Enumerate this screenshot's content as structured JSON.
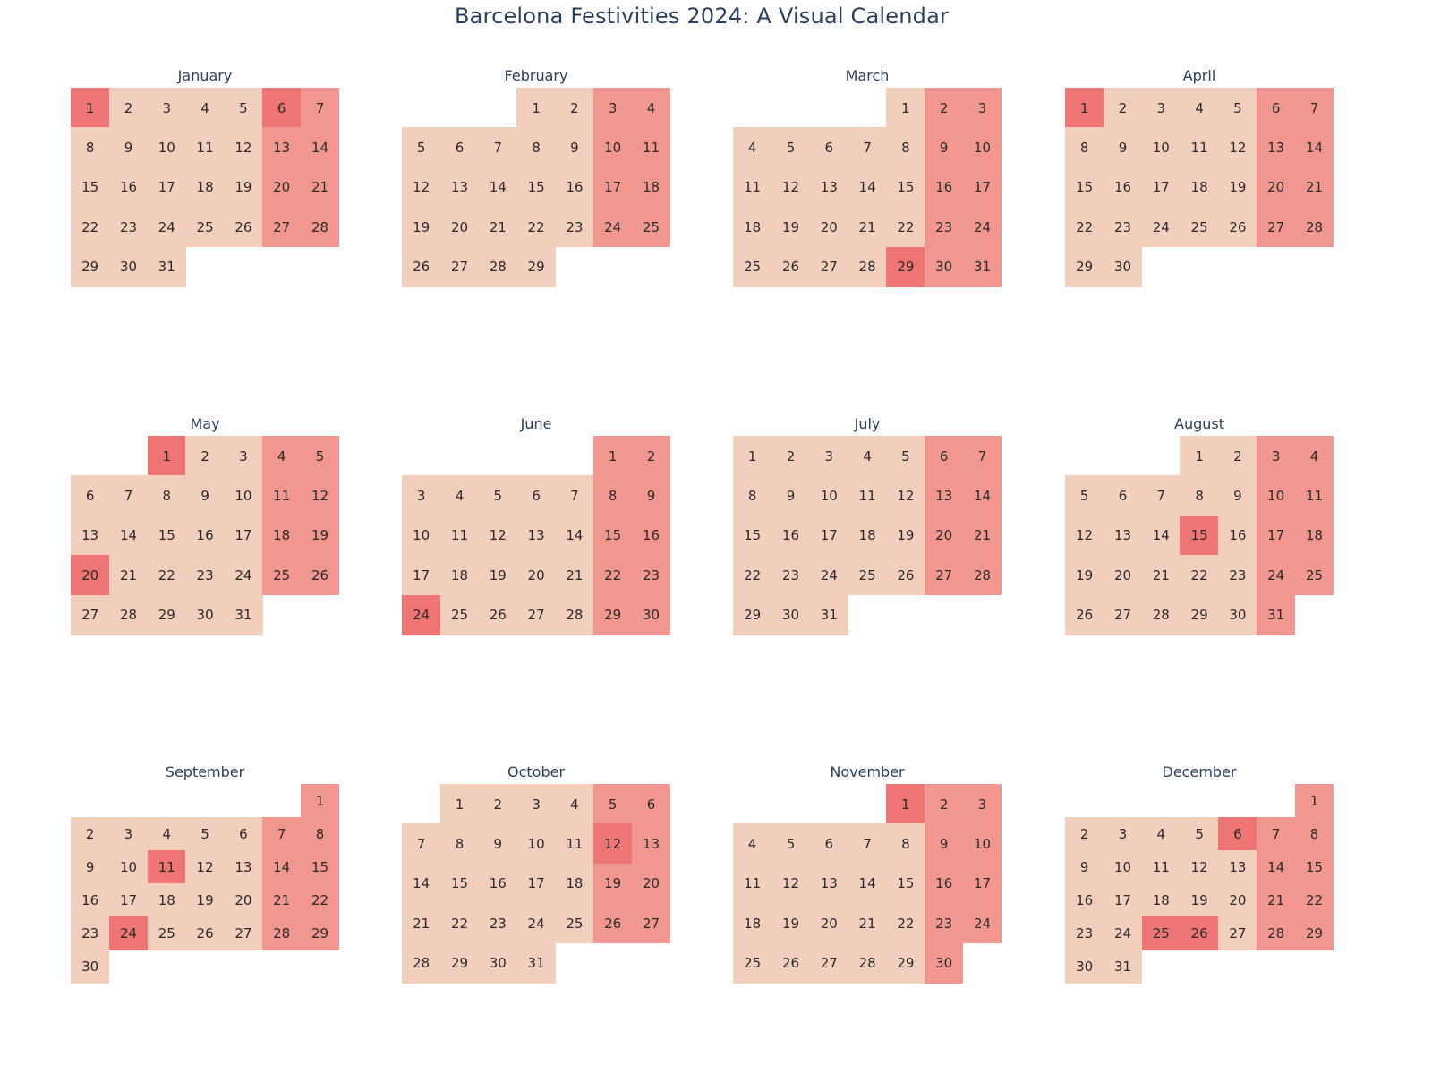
{
  "title": "Barcelona Festivities 2024: A Visual Calendar",
  "colors": {
    "weekday": "#f2cfbd",
    "weekend": "#f1978f",
    "holiday": "#ef7575",
    "empty": "#ffffff",
    "text": "#2a2a2a",
    "title": "#2a3f5f"
  },
  "chart_data": {
    "type": "heatmap",
    "year": 2024,
    "week_start": "Monday",
    "legend": "none",
    "categories": [
      "weekday",
      "weekend",
      "holiday"
    ],
    "months": [
      {
        "name": "January",
        "days": 31,
        "first_weekday": 0,
        "holidays": [
          1,
          6
        ]
      },
      {
        "name": "February",
        "days": 29,
        "first_weekday": 3,
        "holidays": []
      },
      {
        "name": "March",
        "days": 31,
        "first_weekday": 4,
        "holidays": [
          29
        ]
      },
      {
        "name": "April",
        "days": 30,
        "first_weekday": 0,
        "holidays": [
          1
        ]
      },
      {
        "name": "May",
        "days": 31,
        "first_weekday": 2,
        "holidays": [
          1,
          20
        ]
      },
      {
        "name": "June",
        "days": 30,
        "first_weekday": 5,
        "holidays": [
          24
        ]
      },
      {
        "name": "July",
        "days": 31,
        "first_weekday": 0,
        "holidays": []
      },
      {
        "name": "August",
        "days": 31,
        "first_weekday": 3,
        "holidays": [
          15
        ]
      },
      {
        "name": "September",
        "days": 30,
        "first_weekday": 6,
        "holidays": [
          11,
          24
        ]
      },
      {
        "name": "October",
        "days": 31,
        "first_weekday": 1,
        "holidays": [
          12
        ]
      },
      {
        "name": "November",
        "days": 30,
        "first_weekday": 4,
        "holidays": [
          1
        ]
      },
      {
        "name": "December",
        "days": 31,
        "first_weekday": 6,
        "holidays": [
          6,
          25,
          26
        ]
      }
    ]
  }
}
